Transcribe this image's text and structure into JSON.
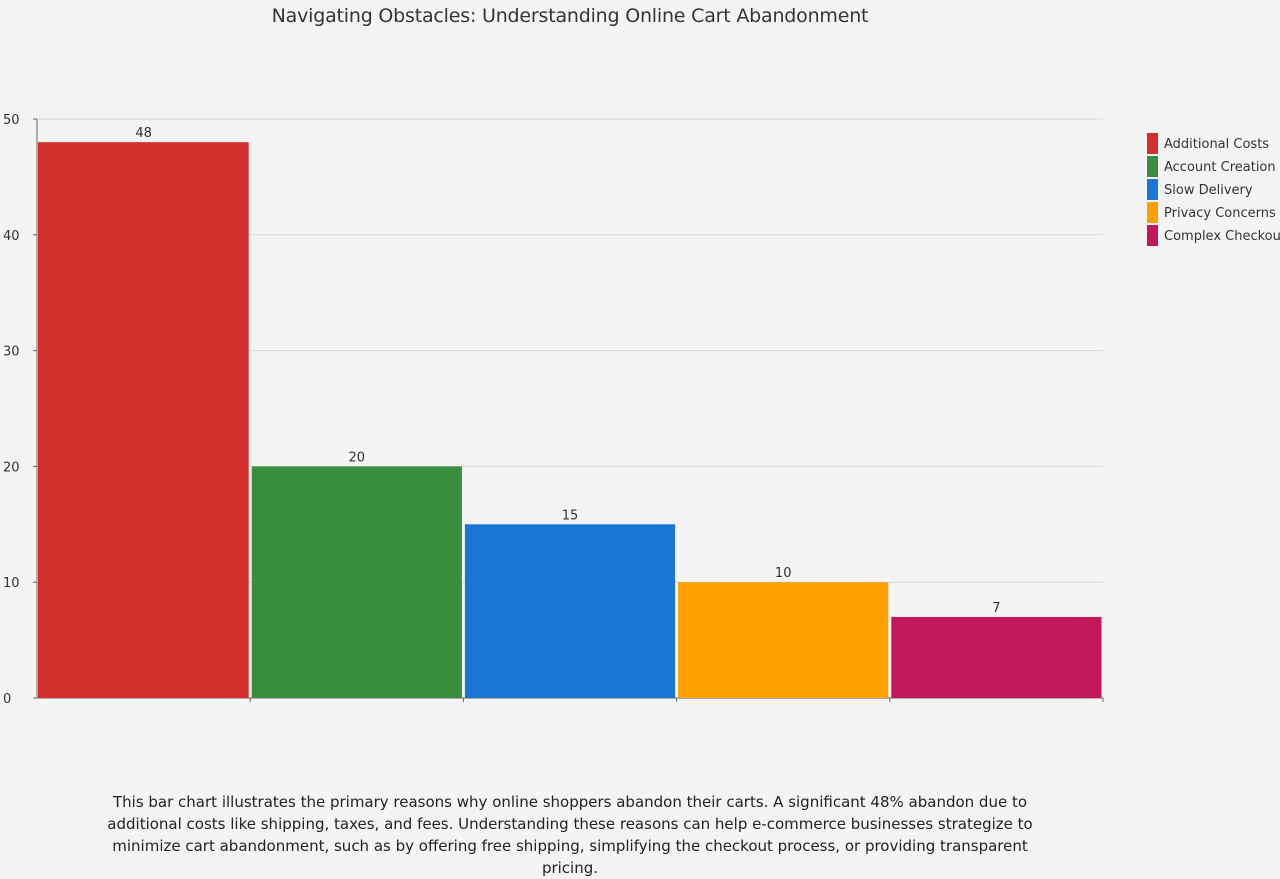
{
  "title": "Navigating Obstacles: Understanding Online Cart Abandonment",
  "caption": "This bar chart illustrates the primary reasons why online shoppers abandon their carts. A significant 48% abandon due to additional costs like shipping, taxes, and fees. Understanding these reasons can help e-commerce businesses strategize to minimize cart abandonment, such as by offering free shipping, simplifying the checkout process, or providing transparent pricing.",
  "chart_data": {
    "type": "bar",
    "title": "Navigating Obstacles: Understanding Online Cart Abandonment",
    "xlabel": "",
    "ylabel": "",
    "categories": [
      "Additional Costs",
      "Account Creation",
      "Slow Delivery",
      "Privacy Concerns",
      "Complex Checkout"
    ],
    "values": [
      48,
      20,
      15,
      10,
      7
    ],
    "colors": [
      "#d32f2f",
      "#388e3c",
      "#1976d2",
      "#ffa000",
      "#c2185b"
    ],
    "ylim": [
      0,
      50
    ],
    "yticks": [
      0,
      10,
      20,
      30,
      40,
      50
    ],
    "grid": true,
    "legend": "top-right",
    "data_labels": true
  }
}
